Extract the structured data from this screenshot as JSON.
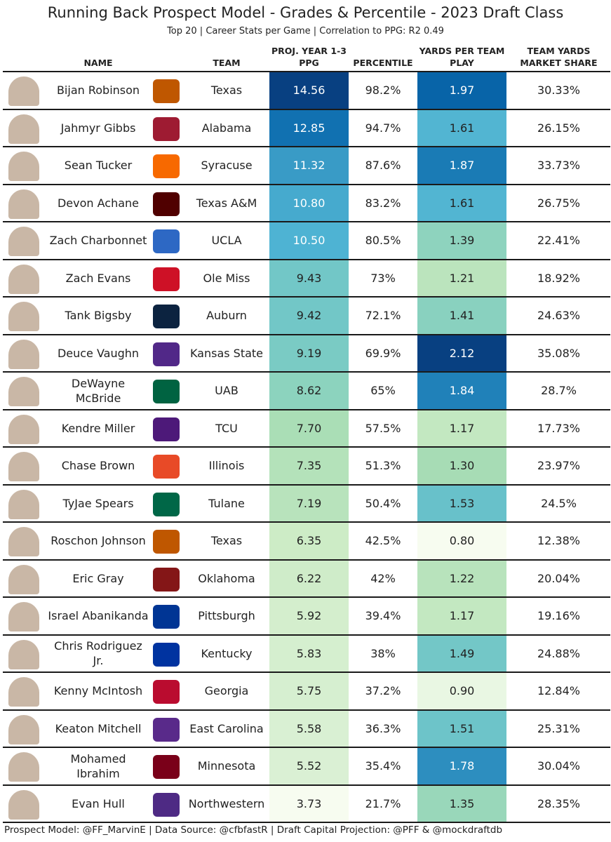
{
  "header": {
    "title": "Running Back Prospect Model - Grades & Percentile - 2023 Draft Class",
    "subtitle": "Top 20 | Career Stats per Game | Correlation to PPG: R2 0.49"
  },
  "table": {
    "columns": [
      "NAME",
      "TEAM",
      "PROJ. YEAR 1-3 PPG",
      "PERCENTILE",
      "YARDS PER TEAM PLAY",
      "TEAM YARDS MARKET SHARE"
    ],
    "rows": [
      [
        "Bijan Robinson",
        "Texas",
        "14.56",
        "98.2%",
        "1.97",
        "30.33%"
      ],
      [
        "Jahmyr Gibbs",
        "Alabama",
        "12.85",
        "94.7%",
        "1.61",
        "26.15%"
      ],
      [
        "Sean Tucker",
        "Syracuse",
        "11.32",
        "87.6%",
        "1.87",
        "33.73%"
      ],
      [
        "Devon Achane",
        "Texas A&M",
        "10.80",
        "83.2%",
        "1.61",
        "26.75%"
      ],
      [
        "Zach Charbonnet",
        "UCLA",
        "10.50",
        "80.5%",
        "1.39",
        "22.41%"
      ],
      [
        "Zach Evans",
        "Ole Miss",
        "9.43",
        "73%",
        "1.21",
        "18.92%"
      ],
      [
        "Tank Bigsby",
        "Auburn",
        "9.42",
        "72.1%",
        "1.41",
        "24.63%"
      ],
      [
        "Deuce Vaughn",
        "Kansas State",
        "9.19",
        "69.9%",
        "2.12",
        "35.08%"
      ],
      [
        "DeWayne McBride",
        "UAB",
        "8.62",
        "65%",
        "1.84",
        "28.7%"
      ],
      [
        "Kendre Miller",
        "TCU",
        "7.70",
        "57.5%",
        "1.17",
        "17.73%"
      ],
      [
        "Chase Brown",
        "Illinois",
        "7.35",
        "51.3%",
        "1.30",
        "23.97%"
      ],
      [
        "TyJae Spears",
        "Tulane",
        "7.19",
        "50.4%",
        "1.53",
        "24.5%"
      ],
      [
        "Roschon Johnson",
        "Texas",
        "6.35",
        "42.5%",
        "0.80",
        "12.38%"
      ],
      [
        "Eric Gray",
        "Oklahoma",
        "6.22",
        "42%",
        "1.22",
        "20.04%"
      ],
      [
        "Israel Abanikanda",
        "Pittsburgh",
        "5.92",
        "39.4%",
        "1.17",
        "19.16%"
      ],
      [
        "Chris Rodriguez Jr.",
        "Kentucky",
        "5.83",
        "38%",
        "1.49",
        "24.88%"
      ],
      [
        "Kenny McIntosh",
        "Georgia",
        "5.75",
        "37.2%",
        "0.90",
        "12.84%"
      ],
      [
        "Keaton Mitchell",
        "East Carolina",
        "5.58",
        "36.3%",
        "1.51",
        "25.31%"
      ],
      [
        "Mohamed Ibrahim",
        "Minnesota",
        "5.52",
        "35.4%",
        "1.78",
        "30.04%"
      ],
      [
        "Evan Hull",
        "Northwestern",
        "3.73",
        "21.7%",
        "1.35",
        "28.35%"
      ]
    ]
  },
  "footer": "Prospect Model: @FF_MarvinE | Data Source: @cfbfastR | Draft Capital Projection: @PFF & @mockdraftdb"
}
